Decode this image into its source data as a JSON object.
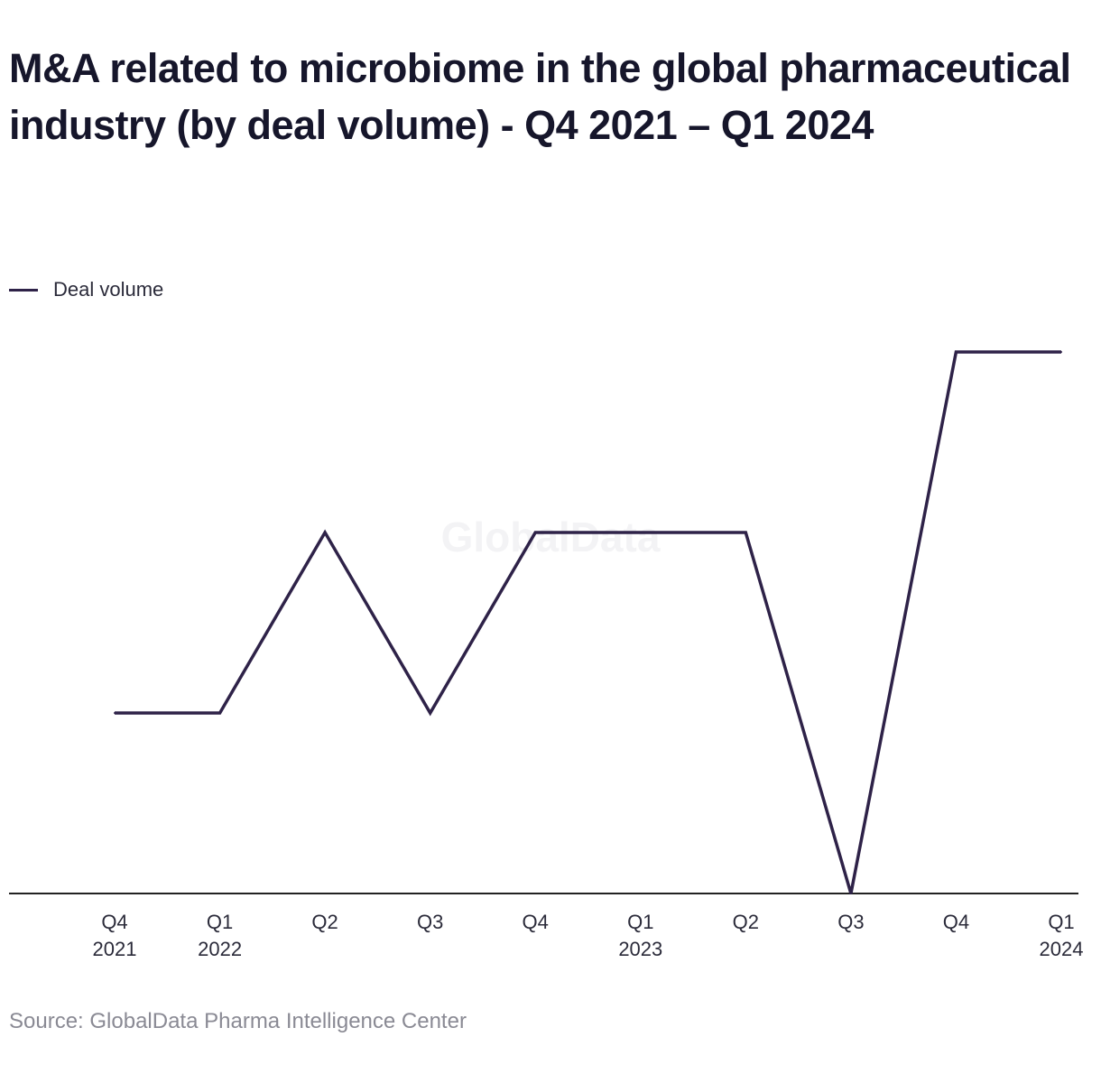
{
  "chart_data": {
    "type": "line",
    "title": "M&A related to microbiome in the global pharmaceutical industry (by deal volume) - Q4 2021 – Q1 2024",
    "categories": [
      [
        "Q4",
        "2021"
      ],
      [
        "Q1",
        "2022"
      ],
      [
        "Q2"
      ],
      [
        "Q3"
      ],
      [
        "Q4"
      ],
      [
        "Q1",
        "2023"
      ],
      [
        "Q2"
      ],
      [
        "Q3"
      ],
      [
        "Q4"
      ],
      [
        "Q1",
        "2024"
      ]
    ],
    "series": [
      {
        "name": "Deal volume",
        "color": "#2e2248",
        "values": [
          1,
          1,
          2,
          1,
          2,
          2,
          2,
          0,
          3,
          3
        ]
      }
    ],
    "ylim": [
      0,
      3
    ],
    "y_axis_visible": false,
    "grid": false,
    "legend": "top-left",
    "watermark": "GlobalData",
    "source": "Source: GlobalData Pharma Intelligence Center"
  }
}
